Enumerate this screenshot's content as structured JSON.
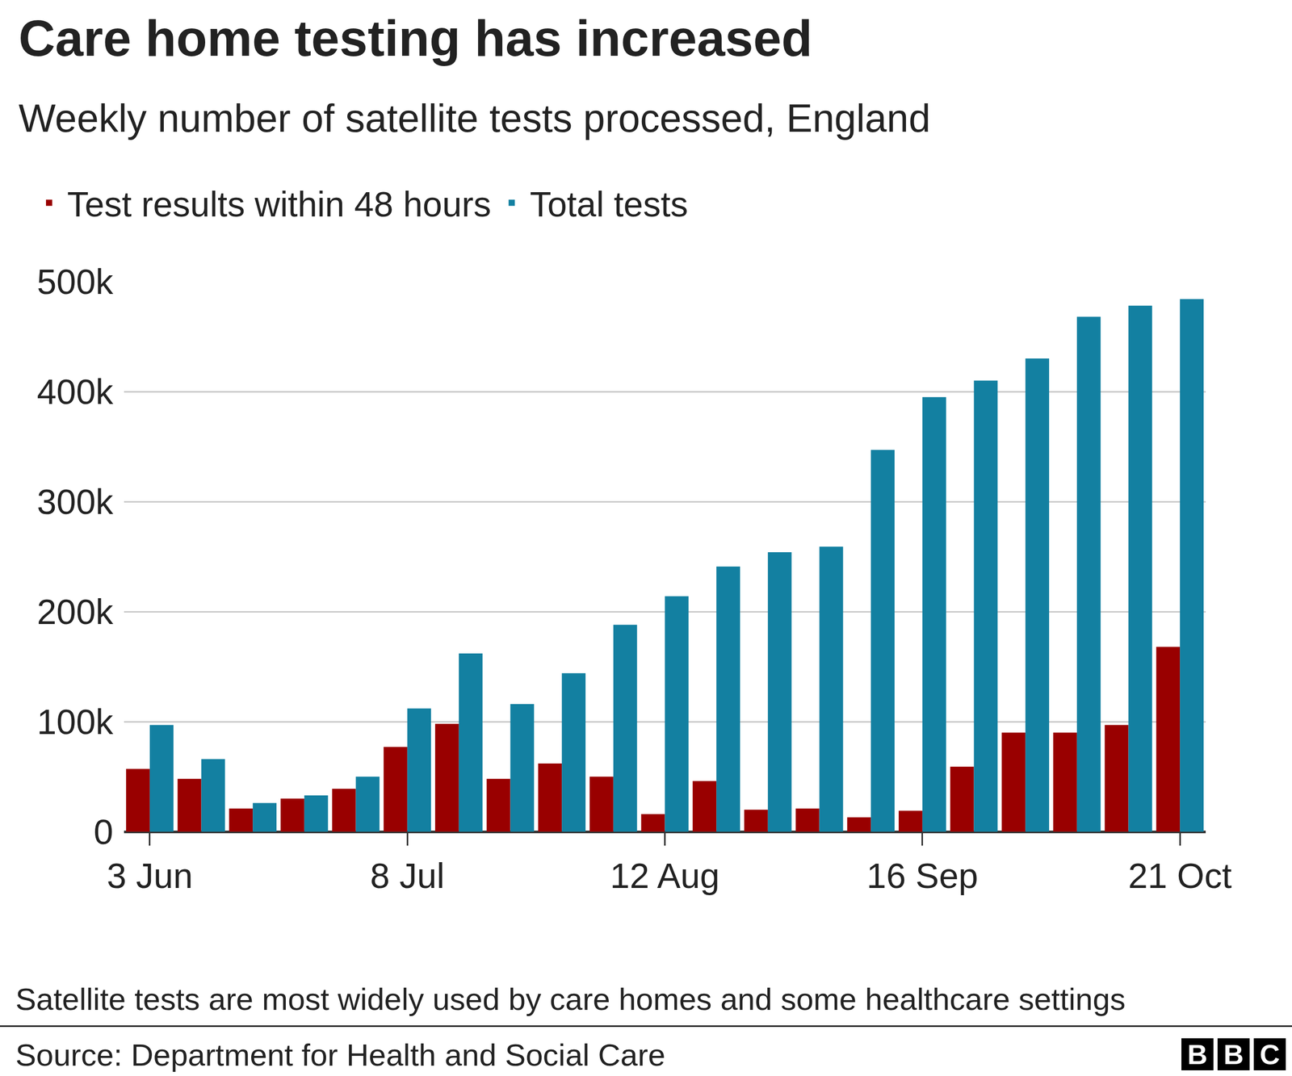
{
  "chart_data": {
    "type": "bar",
    "title": "Care home testing has increased",
    "subtitle": "Weekly number of satellite tests processed, England",
    "note": "Satellite tests are most widely used by care homes and some healthcare settings",
    "source": "Source: Department for Health and Social Care",
    "logo": "BBC",
    "categories": [
      "3 Jun",
      null,
      null,
      null,
      null,
      "8 Jul",
      null,
      null,
      null,
      null,
      "12 Aug",
      null,
      null,
      null,
      null,
      "16 Sep",
      null,
      null,
      null,
      null,
      "21 Oct"
    ],
    "series": [
      {
        "name": "Test results within 48 hours",
        "color": "#990000",
        "values": [
          57000,
          48000,
          21000,
          30000,
          39000,
          77000,
          98000,
          48000,
          62000,
          50000,
          16000,
          46000,
          20000,
          21000,
          13000,
          19000,
          59000,
          90000,
          90000,
          97000,
          168000
        ]
      },
      {
        "name": "Total tests",
        "color": "#1380a1",
        "values": [
          97000,
          66000,
          26000,
          33000,
          50000,
          112000,
          162000,
          116000,
          144000,
          188000,
          214000,
          241000,
          254000,
          259000,
          347000,
          395000,
          410000,
          430000,
          468000,
          478000,
          484000
        ]
      }
    ],
    "ylim": [
      0,
      500000
    ],
    "yticks": [
      0,
      {
        "value": 100000,
        "label": "100k"
      },
      {
        "value": 200000,
        "label": "200k"
      },
      {
        "value": 300000,
        "label": "300k"
      },
      {
        "value": 400000,
        "label": "400k"
      },
      {
        "value": 500000,
        "label": "500k"
      }
    ],
    "grid": true,
    "legend": "top-left"
  }
}
